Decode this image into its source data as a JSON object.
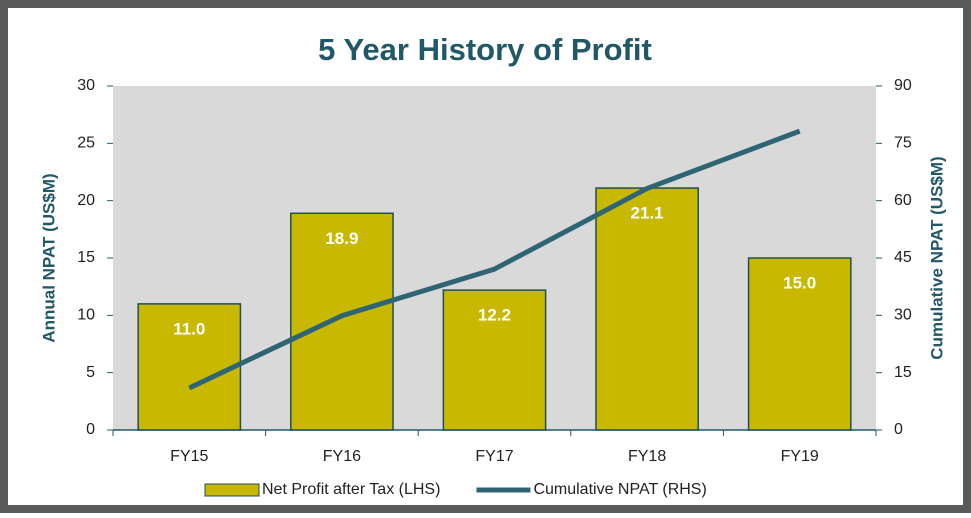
{
  "chart_data": {
    "type": "bar",
    "title": "5 Year History of Profit",
    "ylabel": "Annual NPAT (US$M)",
    "y2label": "Cumulative NPAT (US$M)",
    "categories": [
      "FY15",
      "FY16",
      "FY17",
      "FY18",
      "FY19"
    ],
    "series": [
      {
        "name": "Net Profit after Tax (LHS)",
        "type": "bar",
        "color": "#c9b800",
        "values": [
          11.0,
          18.9,
          12.2,
          21.1,
          15.0
        ],
        "value_labels": [
          "11.0",
          "18.9",
          "12.2",
          "21.1",
          "15.0"
        ]
      },
      {
        "name": "Cumulative NPAT (RHS)",
        "type": "line",
        "axis": "y2",
        "color": "#2f6475",
        "values": [
          11.0,
          29.9,
          42.1,
          63.2,
          78.2
        ]
      }
    ],
    "ylim": [
      0,
      30
    ],
    "yticks": [
      0,
      5,
      10,
      15,
      20,
      25,
      30
    ],
    "y2lim": [
      0,
      90
    ],
    "y2ticks": [
      0,
      15,
      30,
      45,
      60,
      75,
      90
    ],
    "legend": "bottom"
  }
}
